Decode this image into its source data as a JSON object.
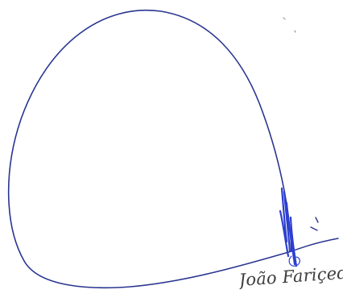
{
  "signature": {
    "ink_color": "#2a3590",
    "mark_color": "#2d3fd0",
    "printed_name": "João Fariçedo"
  }
}
